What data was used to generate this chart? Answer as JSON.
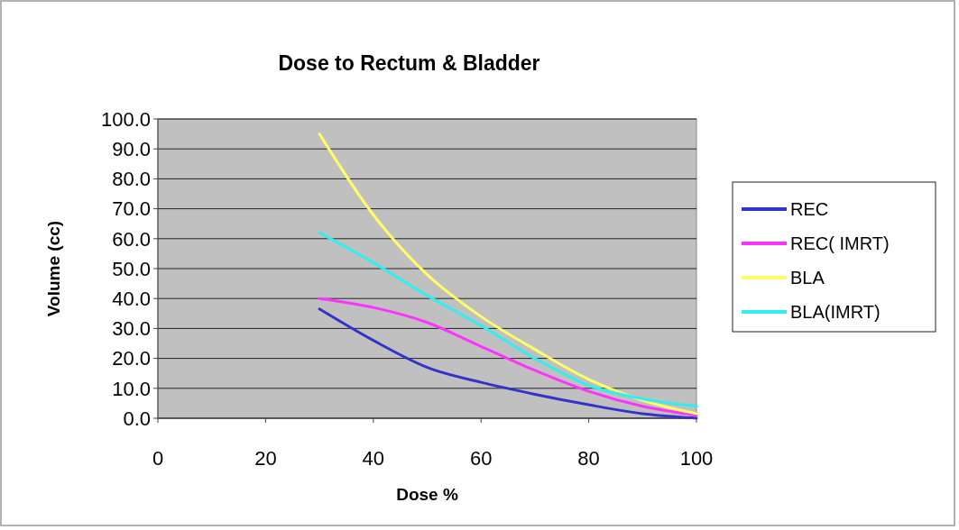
{
  "chart_data": {
    "type": "line",
    "title": "Dose to Rectum & Bladder",
    "xlabel": "Dose  %",
    "ylabel": "Volume  (cc)",
    "x": [
      30,
      40,
      50,
      60,
      70,
      80,
      90,
      100
    ],
    "series": [
      {
        "name": "REC",
        "color": "#3333cc",
        "values": [
          36.5,
          26,
          17,
          12,
          8,
          4.5,
          1.5,
          0
        ]
      },
      {
        "name": "REC( IMRT)",
        "color": "#ff33ff",
        "values": [
          40,
          37,
          32,
          24,
          16,
          9,
          4,
          1
        ]
      },
      {
        "name": "BLA",
        "color": "#ffff66",
        "values": [
          95,
          68,
          48,
          34,
          23,
          13,
          6,
          1.5
        ]
      },
      {
        "name": "BLA(IMRT)",
        "color": "#33eeee",
        "values": [
          62,
          52,
          41,
          31,
          20,
          11,
          6.5,
          4
        ]
      }
    ],
    "xlim": [
      0,
      100
    ],
    "xticks": [
      0,
      20,
      40,
      60,
      80,
      100
    ],
    "ylim": [
      0,
      100
    ],
    "yticks": [
      {
        "value": 0,
        "label": "0.0"
      },
      {
        "value": 10,
        "label": "10.0"
      },
      {
        "value": 20,
        "label": "20.0"
      },
      {
        "value": 30,
        "label": "30.0"
      },
      {
        "value": 40,
        "label": "40.0"
      },
      {
        "value": 50,
        "label": "50.0"
      },
      {
        "value": 60,
        "label": "60.0"
      },
      {
        "value": 70,
        "label": "70.0"
      },
      {
        "value": 80,
        "label": "80.0"
      },
      {
        "value": 90,
        "label": "90.0"
      },
      {
        "value": 100,
        "label": "100.0"
      }
    ],
    "grid": "y",
    "legend": "right",
    "marker": "none",
    "line_style": "solid"
  }
}
